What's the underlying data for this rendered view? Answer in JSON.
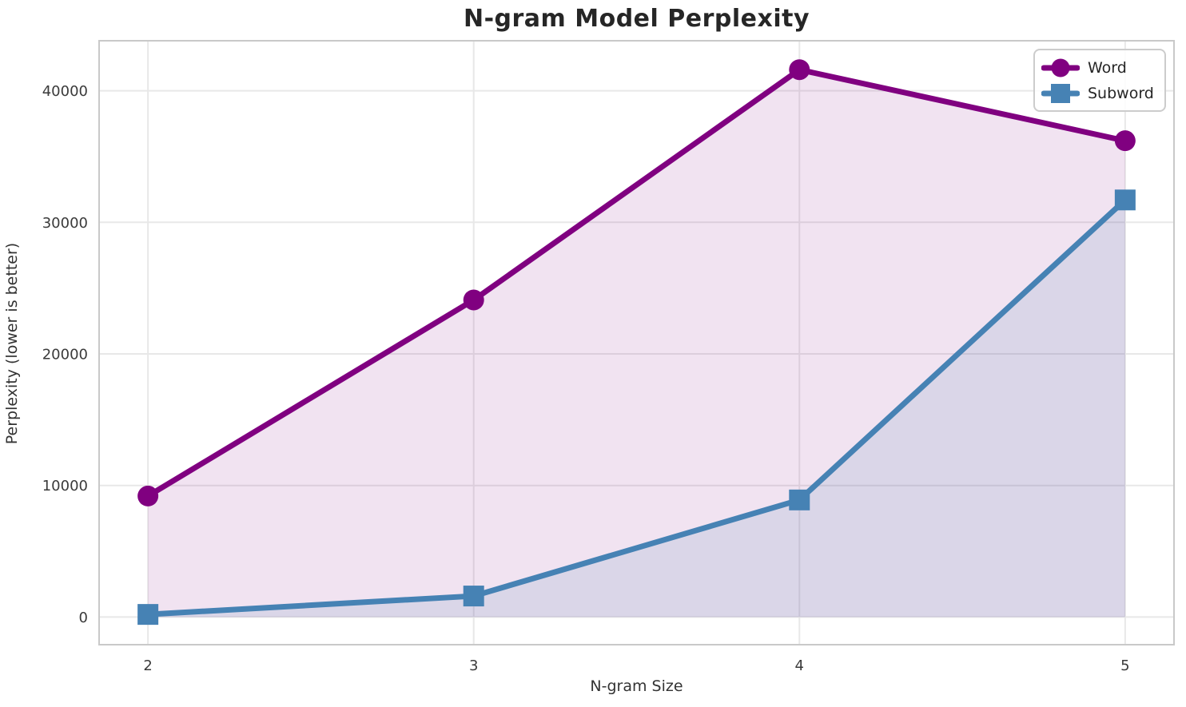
{
  "chart_data": {
    "type": "line",
    "title": "N-gram Model Perplexity",
    "xlabel": "N-gram Size",
    "ylabel": "Perplexity (lower is better)",
    "x": [
      2,
      3,
      4,
      5
    ],
    "series": [
      {
        "name": "Word",
        "values": [
          9200,
          24100,
          41600,
          36200
        ],
        "color": "#800080",
        "fill_color": "rgba(128,0,128,0.11)",
        "marker": "circle"
      },
      {
        "name": "Subword",
        "values": [
          200,
          1600,
          8900,
          31700
        ],
        "color": "#4682b4",
        "fill_color": "rgba(70,130,180,0.13)",
        "marker": "square"
      }
    ],
    "xticks": [
      2,
      3,
      4,
      5
    ],
    "xtick_labels": [
      "2",
      "3",
      "4",
      "5"
    ],
    "yticks": [
      0,
      10000,
      20000,
      30000,
      40000
    ],
    "ytick_labels": [
      "0",
      "10000",
      "20000",
      "30000",
      "40000"
    ],
    "xlim": [
      1.85,
      5.15
    ],
    "ylim": [
      -2100,
      43800
    ],
    "grid": true,
    "area_fill_baseline": 0,
    "legend_position": "upper right",
    "legend_entries": [
      "Word",
      "Subword"
    ]
  },
  "style": {
    "grid_color": "#e8e8e8",
    "spine_color": "#c9c9c9",
    "tick_label_color": "#3a3a3a",
    "text_color": "#262626",
    "background": "#ffffff",
    "line_width": 7,
    "marker_size": 26
  }
}
